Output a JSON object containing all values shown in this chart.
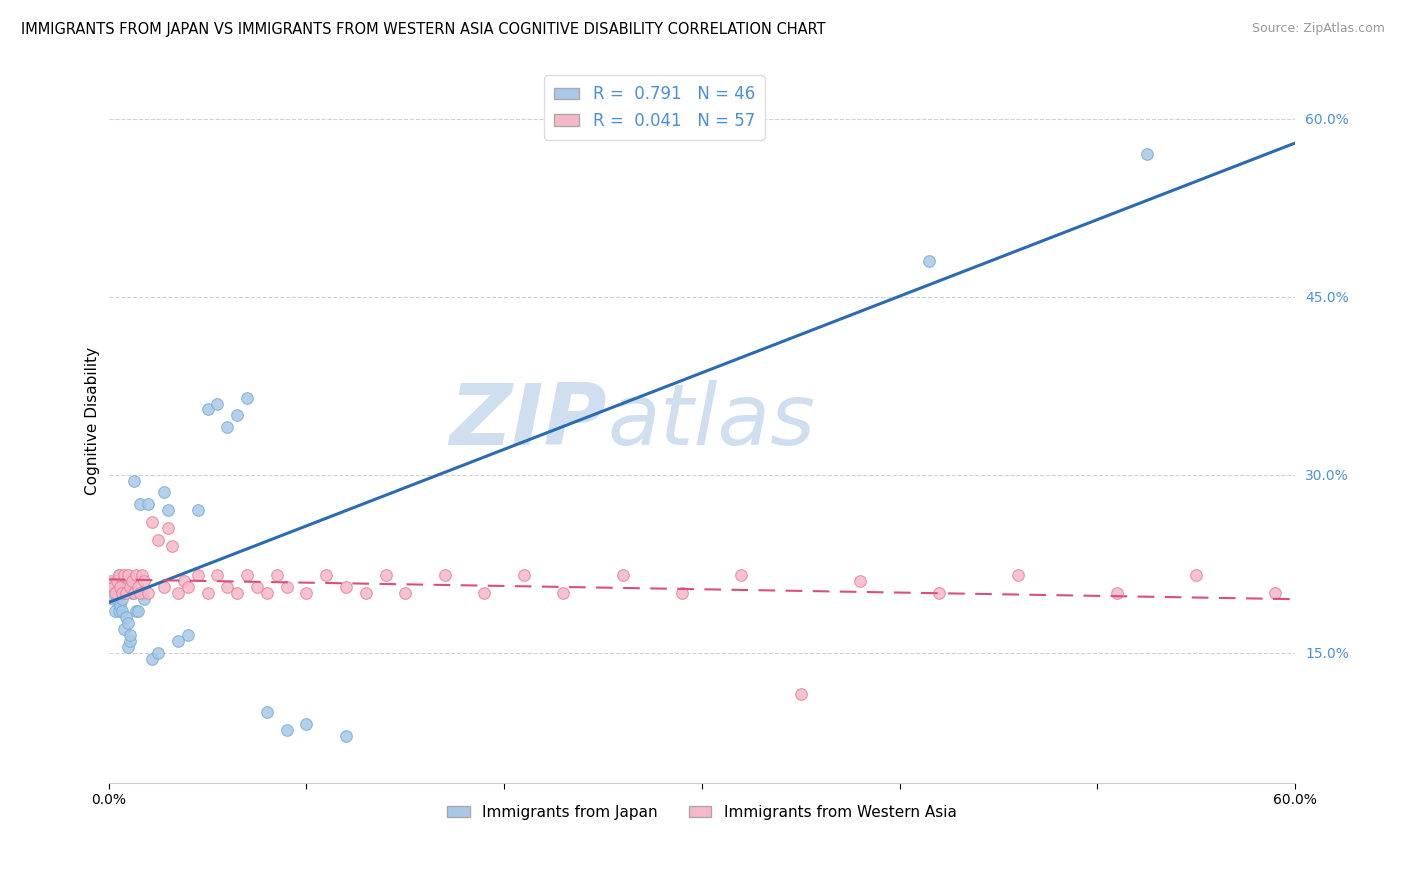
{
  "title": "IMMIGRANTS FROM JAPAN VS IMMIGRANTS FROM WESTERN ASIA COGNITIVE DISABILITY CORRELATION CHART",
  "source": "Source: ZipAtlas.com",
  "ylabel": "Cognitive Disability",
  "xmin": 0.0,
  "xmax": 0.6,
  "ymin": 0.04,
  "ymax": 0.65,
  "yticks": [
    0.15,
    0.3,
    0.45,
    0.6
  ],
  "ytick_labels": [
    "15.0%",
    "30.0%",
    "45.0%",
    "60.0%"
  ],
  "xtick_labels": [
    "0.0%",
    "",
    "",
    "",
    "",
    "",
    "60.0%"
  ],
  "xticks": [
    0.0,
    0.1,
    0.2,
    0.3,
    0.4,
    0.5,
    0.6
  ],
  "grid_color": "#cccccc",
  "bg_color": "#ffffff",
  "series1_color": "#a8c8e8",
  "series1_edge": "#7aafd4",
  "series1_line_color": "#2b6cb0",
  "series1_label": "Immigrants from Japan",
  "series1_R": 0.791,
  "series1_N": 46,
  "series2_color": "#f4b8c8",
  "series2_edge": "#e8849a",
  "series2_line_color": "#d94f7a",
  "series2_label": "Immigrants from Western Asia",
  "series2_R": 0.041,
  "series2_N": 57,
  "japan_x": [
    0.001,
    0.002,
    0.003,
    0.003,
    0.004,
    0.004,
    0.005,
    0.005,
    0.006,
    0.006,
    0.007,
    0.007,
    0.008,
    0.008,
    0.009,
    0.009,
    0.01,
    0.01,
    0.011,
    0.011,
    0.012,
    0.013,
    0.014,
    0.015,
    0.016,
    0.017,
    0.018,
    0.02,
    0.022,
    0.025,
    0.028,
    0.03,
    0.035,
    0.04,
    0.045,
    0.05,
    0.055,
    0.06,
    0.065,
    0.07,
    0.08,
    0.09,
    0.1,
    0.12,
    0.415,
    0.525
  ],
  "japan_y": [
    0.205,
    0.195,
    0.21,
    0.185,
    0.2,
    0.195,
    0.215,
    0.185,
    0.205,
    0.19,
    0.185,
    0.195,
    0.17,
    0.2,
    0.18,
    0.205,
    0.155,
    0.175,
    0.16,
    0.165,
    0.2,
    0.295,
    0.185,
    0.185,
    0.275,
    0.2,
    0.195,
    0.275,
    0.145,
    0.15,
    0.285,
    0.27,
    0.16,
    0.165,
    0.27,
    0.355,
    0.36,
    0.34,
    0.35,
    0.365,
    0.1,
    0.085,
    0.09,
    0.08,
    0.48,
    0.57
  ],
  "wasia_x": [
    0.001,
    0.002,
    0.003,
    0.004,
    0.005,
    0.006,
    0.007,
    0.008,
    0.009,
    0.01,
    0.011,
    0.012,
    0.013,
    0.014,
    0.015,
    0.016,
    0.017,
    0.018,
    0.02,
    0.022,
    0.025,
    0.028,
    0.03,
    0.032,
    0.035,
    0.038,
    0.04,
    0.045,
    0.05,
    0.055,
    0.06,
    0.065,
    0.07,
    0.075,
    0.08,
    0.085,
    0.09,
    0.1,
    0.11,
    0.12,
    0.13,
    0.14,
    0.15,
    0.17,
    0.19,
    0.21,
    0.23,
    0.26,
    0.29,
    0.32,
    0.35,
    0.38,
    0.42,
    0.46,
    0.51,
    0.55,
    0.59
  ],
  "wasia_y": [
    0.21,
    0.205,
    0.2,
    0.21,
    0.215,
    0.205,
    0.2,
    0.215,
    0.2,
    0.215,
    0.205,
    0.21,
    0.2,
    0.215,
    0.205,
    0.2,
    0.215,
    0.21,
    0.2,
    0.26,
    0.245,
    0.205,
    0.255,
    0.24,
    0.2,
    0.21,
    0.205,
    0.215,
    0.2,
    0.215,
    0.205,
    0.2,
    0.215,
    0.205,
    0.2,
    0.215,
    0.205,
    0.2,
    0.215,
    0.205,
    0.2,
    0.215,
    0.2,
    0.215,
    0.2,
    0.215,
    0.2,
    0.215,
    0.2,
    0.215,
    0.115,
    0.21,
    0.2,
    0.215,
    0.2,
    0.215,
    0.2
  ],
  "watermark_top": "ZIP",
  "watermark_bot": "atlas",
  "watermark_color": "#d0dff0",
  "watermark_fontsize": 62
}
